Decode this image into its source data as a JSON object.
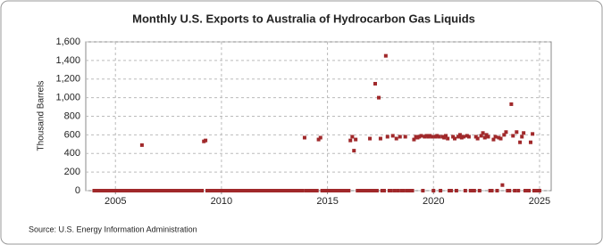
{
  "chart_data": {
    "type": "scatter",
    "title": "Monthly U.S. Exports to Australia of Hydrocarbon Gas Liquids",
    "y_label": "Thousand Barrels",
    "source": "Source: U.S. Energy Information Administration",
    "color": "#a0282a",
    "grid": true,
    "xlim": [
      2003.6,
      2025.55
    ],
    "ylim": [
      0,
      1600
    ],
    "xticks": [
      2005,
      2010,
      2015,
      2020,
      2025
    ],
    "yticks": [
      0,
      200,
      400,
      600,
      800,
      {
        "value": 1000,
        "label": "1,000"
      },
      {
        "value": 1200,
        "label": "1,200"
      },
      {
        "value": 1400,
        "label": "1,400"
      },
      {
        "value": 1600,
        "label": "1,600"
      }
    ],
    "x": [
      2004,
      2004.08,
      2004.17,
      2004.25,
      2004.33,
      2004.42,
      2004.5,
      2004.58,
      2004.67,
      2004.75,
      2004.83,
      2004.92,
      2005,
      2005.08,
      2005.17,
      2005.25,
      2005.33,
      2005.42,
      2005.5,
      2005.58,
      2005.67,
      2005.75,
      2005.83,
      2005.92,
      2006,
      2006.08,
      2006.17,
      2006.25,
      2006.33,
      2006.42,
      2006.5,
      2006.58,
      2006.67,
      2006.75,
      2006.83,
      2006.92,
      2007,
      2007.08,
      2007.17,
      2007.25,
      2007.33,
      2007.42,
      2007.5,
      2007.58,
      2007.67,
      2007.75,
      2007.83,
      2007.92,
      2008,
      2008.08,
      2008.17,
      2008.25,
      2008.33,
      2008.42,
      2008.5,
      2008.58,
      2008.67,
      2008.75,
      2008.83,
      2008.92,
      2009,
      2009.08,
      2009.17,
      2009.25,
      2009.33,
      2009.42,
      2009.5,
      2009.58,
      2009.67,
      2009.75,
      2009.83,
      2009.92,
      2010,
      2010.08,
      2010.17,
      2010.25,
      2010.33,
      2010.42,
      2010.5,
      2010.58,
      2010.67,
      2010.75,
      2010.83,
      2010.92,
      2011,
      2011.08,
      2011.17,
      2011.25,
      2011.33,
      2011.42,
      2011.5,
      2011.58,
      2011.67,
      2011.75,
      2011.83,
      2011.92,
      2012,
      2012.08,
      2012.17,
      2012.25,
      2012.33,
      2012.42,
      2012.5,
      2012.58,
      2012.67,
      2012.75,
      2012.83,
      2012.92,
      2013,
      2013.08,
      2013.17,
      2013.25,
      2013.33,
      2013.42,
      2013.5,
      2013.58,
      2013.67,
      2013.75,
      2013.83,
      2013.92,
      2014,
      2014.08,
      2014.17,
      2014.25,
      2014.33,
      2014.42,
      2014.5,
      2014.58,
      2014.67,
      2014.75,
      2014.83,
      2014.92,
      2015,
      2015.08,
      2015.17,
      2015.25,
      2015.33,
      2015.42,
      2015.5,
      2015.58,
      2015.67,
      2015.75,
      2015.83,
      2015.92,
      2016,
      2016.08,
      2016.17,
      2016.25,
      2016.33,
      2016.42,
      2016.5,
      2016.58,
      2016.67,
      2016.75,
      2016.83,
      2016.92,
      2017,
      2017.08,
      2017.17,
      2017.25,
      2017.33,
      2017.42,
      2017.5,
      2017.58,
      2017.67,
      2017.75,
      2017.83,
      2017.92,
      2018,
      2018.08,
      2018.17,
      2018.25,
      2018.33,
      2018.42,
      2018.5,
      2018.58,
      2018.67,
      2018.75,
      2018.83,
      2018.92,
      2019,
      2019.08,
      2019.17,
      2019.25,
      2019.33,
      2019.42,
      2019.5,
      2019.58,
      2019.67,
      2019.75,
      2019.83,
      2019.92,
      2020,
      2020.08,
      2020.17,
      2020.25,
      2020.33,
      2020.42,
      2020.5,
      2020.58,
      2020.67,
      2020.75,
      2020.83,
      2020.92,
      2021,
      2021.08,
      2021.17,
      2021.25,
      2021.33,
      2021.42,
      2021.5,
      2021.58,
      2021.67,
      2021.75,
      2021.83,
      2021.92,
      2022,
      2022.08,
      2022.17,
      2022.25,
      2022.33,
      2022.42,
      2022.5,
      2022.58,
      2022.67,
      2022.75,
      2022.83,
      2022.92,
      2023,
      2023.08,
      2023.17,
      2023.25,
      2023.33,
      2023.42,
      2023.5,
      2023.58,
      2023.67,
      2023.75,
      2023.83,
      2023.92,
      2024,
      2024.08,
      2024.17,
      2024.25,
      2024.33,
      2024.42,
      2024.5,
      2024.58,
      2024.67,
      2024.75,
      2024.83,
      2024.92,
      2025
    ],
    "values": [
      0,
      0,
      0,
      0,
      0,
      0,
      0,
      0,
      0,
      0,
      0,
      0,
      0,
      0,
      0,
      0,
      0,
      0,
      0,
      0,
      0,
      0,
      0,
      0,
      0,
      0,
      0,
      490,
      0,
      0,
      0,
      0,
      0,
      0,
      0,
      0,
      0,
      0,
      0,
      0,
      0,
      0,
      0,
      0,
      0,
      0,
      0,
      0,
      0,
      0,
      0,
      0,
      0,
      0,
      0,
      0,
      0,
      0,
      0,
      0,
      0,
      0,
      530,
      540,
      0,
      0,
      0,
      0,
      0,
      0,
      0,
      0,
      0,
      0,
      0,
      0,
      0,
      0,
      0,
      0,
      0,
      0,
      0,
      0,
      0,
      0,
      0,
      0,
      0,
      0,
      0,
      0,
      0,
      0,
      0,
      0,
      0,
      0,
      0,
      0,
      0,
      0,
      0,
      0,
      0,
      0,
      0,
      0,
      0,
      0,
      0,
      0,
      0,
      0,
      0,
      0,
      0,
      0,
      0,
      570,
      0,
      0,
      0,
      0,
      0,
      0,
      0,
      550,
      570,
      0,
      0,
      0,
      0,
      0,
      0,
      0,
      0,
      0,
      0,
      0,
      0,
      0,
      0,
      0,
      0,
      540,
      580,
      430,
      550,
      0,
      0,
      0,
      0,
      0,
      0,
      0,
      560,
      0,
      0,
      1150,
      0,
      1000,
      560,
      0,
      0,
      1450,
      580,
      0,
      0,
      590,
      0,
      560,
      0,
      580,
      0,
      0,
      580,
      0,
      0,
      0,
      0,
      550,
      580,
      570,
      580,
      590,
      0,
      580,
      590,
      580,
      590,
      580,
      0,
      580,
      590,
      580,
      0,
      580,
      570,
      590,
      560,
      0,
      0,
      580,
      560,
      0,
      580,
      600,
      570,
      580,
      0,
      590,
      580,
      0,
      0,
      0,
      580,
      560,
      0,
      590,
      620,
      570,
      600,
      580,
      0,
      0,
      550,
      580,
      0,
      570,
      560,
      60,
      600,
      630,
      0,
      0,
      930,
      590,
      0,
      630,
      0,
      520,
      580,
      620,
      0,
      0,
      0,
      520,
      610,
      0,
      0,
      0,
      0
    ]
  }
}
